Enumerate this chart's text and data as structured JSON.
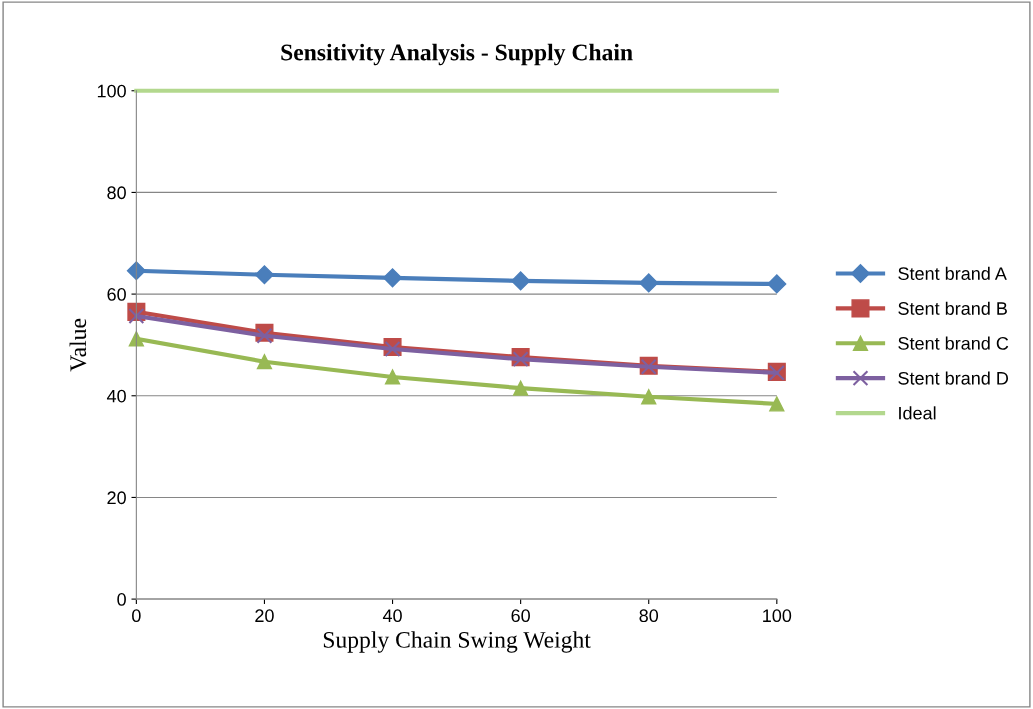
{
  "chart_data": {
    "type": "line",
    "title": "Sensitivity Analysis - Supply Chain",
    "xlabel": "Supply Chain Swing Weight",
    "ylabel": "Value",
    "x": [
      0,
      20,
      40,
      60,
      80,
      100
    ],
    "xlim": [
      0,
      100
    ],
    "xticks": [
      0,
      20,
      40,
      60,
      80,
      100
    ],
    "ylim": [
      0,
      100
    ],
    "yticks": [
      0,
      20,
      40,
      60,
      80,
      100
    ],
    "grid": "y",
    "legend": "right",
    "line_style": "solid",
    "series": [
      {
        "name": "Stent brand A",
        "color": "#4a7ebb",
        "marker": "diamond",
        "values": [
          64.6,
          63.8,
          63.2,
          62.6,
          62.2,
          62.0
        ]
      },
      {
        "name": "Stent brand B",
        "color": "#be4b48",
        "marker": "square",
        "values": [
          56.5,
          52.4,
          49.6,
          47.6,
          45.9,
          44.7
        ]
      },
      {
        "name": "Stent brand C",
        "color": "#98b954",
        "marker": "triangle",
        "values": [
          51.2,
          46.7,
          43.7,
          41.5,
          39.8,
          38.4
        ]
      },
      {
        "name": "Stent brand D",
        "color": "#7d60a0",
        "marker": "cross",
        "values": [
          55.7,
          51.8,
          49.2,
          47.2,
          45.7,
          44.5
        ]
      },
      {
        "name": "Ideal",
        "color": "#b3d88e",
        "marker": "none",
        "values": [
          100,
          100,
          100,
          100,
          100,
          100
        ]
      }
    ]
  }
}
